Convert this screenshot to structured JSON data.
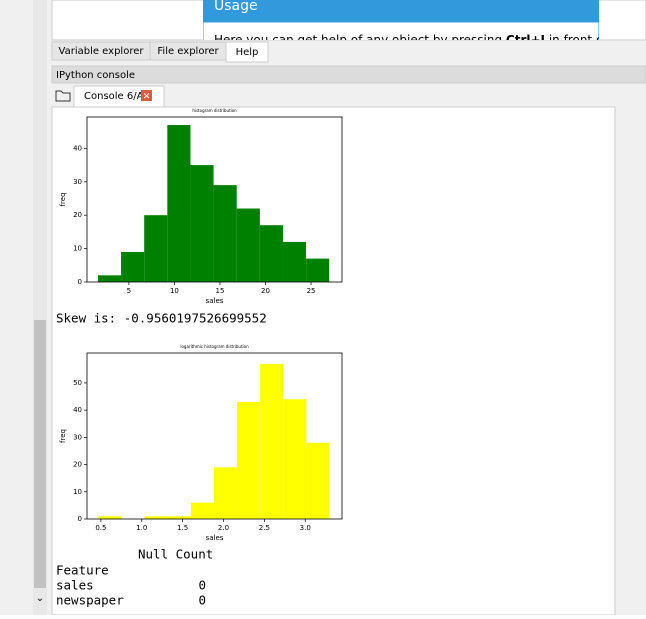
{
  "help": {
    "title": "Usage",
    "text_before": "Here you can get help of any object by pressing ",
    "key": "Ctrl+I",
    "text_after": " in front of"
  },
  "tabs": [
    "Variable explorer",
    "File explorer",
    "Help"
  ],
  "console": {
    "title": "IPython console",
    "tab": "Console 6/A"
  },
  "chart_data": [
    {
      "type": "histogram",
      "title": "histogram distribution",
      "x_label": "sales",
      "y_label": "freq",
      "color": "#008000",
      "bins": [
        1.6,
        4.14,
        6.68,
        9.22,
        11.76,
        14.3,
        16.84,
        19.38,
        21.92,
        24.46,
        27.0
      ],
      "values": [
        2,
        9,
        20,
        47,
        35,
        29,
        22,
        17,
        12,
        7
      ],
      "xlim": [
        0.4,
        28.4
      ],
      "xticks": [
        5,
        10,
        15,
        20,
        25
      ],
      "ylim": [
        0,
        49.4
      ],
      "yticks": [
        0,
        10,
        20,
        30,
        40
      ]
    },
    {
      "type": "histogram",
      "title": "logarithmic histogram distribution",
      "x_label": "sales",
      "y_label": "freq",
      "color": "#ffff00",
      "bins": [
        0.47,
        0.753,
        1.035,
        1.318,
        1.601,
        1.883,
        2.166,
        2.449,
        2.731,
        3.014,
        3.296
      ],
      "values": [
        1,
        0,
        1,
        1,
        6,
        19,
        43,
        57,
        44,
        28
      ],
      "xlim": [
        0.33,
        3.45
      ],
      "xticks": [
        0.5,
        {
          "value": 1.0,
          "label": "1.0"
        },
        1.5,
        {
          "value": 2.0,
          "label": "2.0"
        },
        2.5,
        {
          "value": 3.0,
          "label": "3.0"
        }
      ],
      "ylim": [
        0,
        61
      ],
      "yticks": [
        0,
        10,
        20,
        30,
        40,
        50
      ]
    }
  ],
  "output": {
    "skew": "Skew is: -0.9560197526699552",
    "table": {
      "title": "Null Count",
      "index_name": "Feature",
      "rows": [
        [
          "sales",
          0
        ],
        [
          "newspaper",
          0
        ]
      ]
    }
  }
}
